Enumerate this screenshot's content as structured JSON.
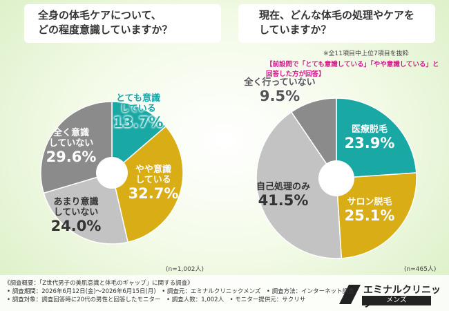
{
  "chart_data": [
    {
      "type": "pie",
      "title": "全身の体毛ケアについて、\nどの程度意識していますか？",
      "categories": [
        "とても意識\nしている",
        "やや意識\nしている",
        "あまり意識\nしていない",
        "全く意識\nしていない"
      ],
      "values": [
        13.7,
        32.7,
        24.0,
        29.6
      ],
      "value_labels": [
        "13.7%",
        "32.7%",
        "24.0%",
        "29.6%"
      ],
      "colors": [
        "#1aa8a4",
        "#d8ad16",
        "#c3c3c3",
        "#8b8b8b"
      ],
      "notes": [
        "(n=1,002人)"
      ]
    },
    {
      "type": "pie",
      "title": "現在、どんな体毛の処理やケアを\nしていますか？",
      "categories": [
        "医療脱毛",
        "サロン脱毛",
        "自己処理のみ",
        "全く行っていない"
      ],
      "values": [
        23.9,
        25.1,
        41.5,
        9.5
      ],
      "value_labels": [
        "23.9%",
        "25.1%",
        "41.5%",
        "9.5%"
      ],
      "colors": [
        "#1aa8a4",
        "#d8ad16",
        "#c3c3c3",
        "#8b8b8b"
      ],
      "notes": [
        "(n=465人)",
        "※全11項目中上位7項目を抜粋",
        "【前設問で「とても意識している」「やや意識している」と\n回答した方が回答】"
      ]
    }
  ],
  "footer": [
    "《調査概要：「Z世代男子の美肌意識と体毛のギャップ」に関する調査》",
    "• 調査期間：2026年6月12日(金)～2026年6月15日(月)　• 調査元：エミナルクリニックメンズ　• 調査方法：インターネット調査",
    "• 調査対象：調査回答時に20代の男性と回答したモニター　• 調査人数：1,002人　• モニター提供元：サクリサ"
  ],
  "logo": {
    "name": "エミナルクリニック",
    "sub": "メンズ"
  }
}
